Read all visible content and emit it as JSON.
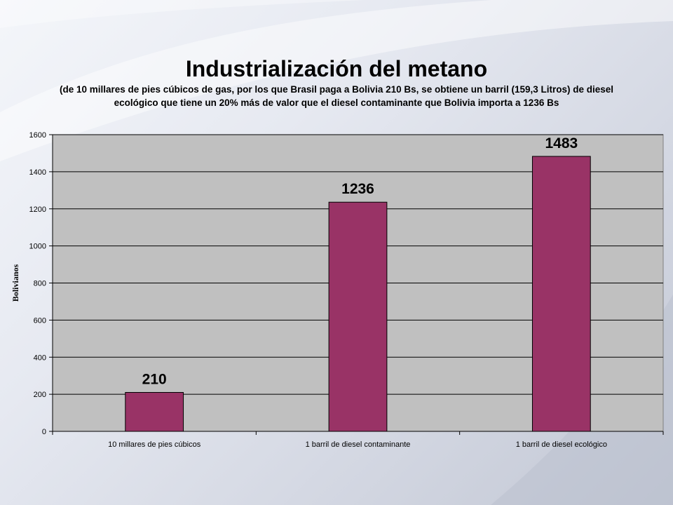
{
  "slide": {
    "title": "Industrialización del metano",
    "subtitle": "(de 10 millares de pies cúbicos de gas, por los que Brasil paga a Bolivia 210 Bs, se obtiene un barril (159,3 Litros) de diesel ecológico que tiene un 20% más de valor que el diesel contaminante que Bolivia importa a 1236 Bs"
  },
  "colors": {
    "bar": "#993366",
    "plot_background": "#c0c0c0",
    "gridline": "#000000"
  },
  "chart_data": {
    "type": "bar",
    "categories": [
      "10 millares de pies cúbicos",
      "1 barril de diesel contaminante",
      "1 barril de diesel ecológico"
    ],
    "values": [
      210,
      1236,
      1483
    ],
    "data_labels": [
      "210",
      "1236",
      "1483"
    ],
    "ylabel": "Bolivianos",
    "ylim": [
      0,
      1600
    ],
    "yticks": [
      0,
      200,
      400,
      600,
      800,
      1000,
      1200,
      1400,
      1600
    ],
    "grid": true,
    "legend": "none"
  }
}
